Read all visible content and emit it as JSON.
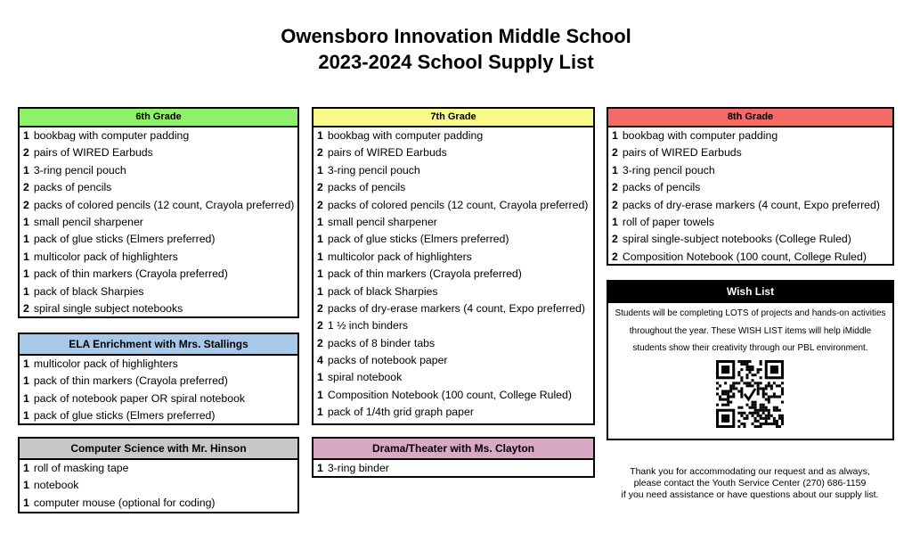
{
  "title_line1": "Owensboro Innovation Middle School",
  "title_line2": "2023-2024 School Supply List",
  "colors": {
    "grade6": "#8ff06a",
    "grade7": "#fafa8a",
    "grade8": "#f46a64",
    "ela": "#a8c8ea",
    "cs": "#c8c8c8",
    "drama": "#d8a8c4",
    "wish": "#000000"
  },
  "grade6": {
    "header": "6th Grade",
    "items": [
      {
        "qty": "1",
        "text": "bookbag with computer padding"
      },
      {
        "qty": "2",
        "text": "pairs of WIRED Earbuds"
      },
      {
        "qty": "1",
        "text": "3-ring pencil pouch"
      },
      {
        "qty": "2",
        "text": "packs of pencils"
      },
      {
        "qty": "2",
        "text": "packs of colored pencils (12 count, Crayola preferred)"
      },
      {
        "qty": "1",
        "text": "small pencil sharpener"
      },
      {
        "qty": "1",
        "text": "pack of glue sticks (Elmers preferred)"
      },
      {
        "qty": "1",
        "text": "multicolor pack of highlighters"
      },
      {
        "qty": "1",
        "text": "pack of thin markers (Crayola preferred)"
      },
      {
        "qty": "1",
        "text": "pack of black Sharpies"
      },
      {
        "qty": "2",
        "text": "spiral single subject notebooks"
      }
    ]
  },
  "ela": {
    "header": "ELA Enrichment with Mrs. Stallings",
    "items": [
      {
        "qty": "1",
        "text": "multicolor pack of highlighters"
      },
      {
        "qty": "1",
        "text": "pack of thin markers (Crayola preferred)"
      },
      {
        "qty": "1",
        "text": "pack of notebook paper OR spiral notebook"
      },
      {
        "qty": "1",
        "text": "pack of glue sticks (Elmers preferred)"
      }
    ]
  },
  "cs": {
    "header": "Computer Science with Mr. Hinson",
    "items": [
      {
        "qty": "1",
        "text": "roll of masking tape"
      },
      {
        "qty": "1",
        "text": "notebook"
      },
      {
        "qty": "1",
        "text": "computer mouse (optional for coding)"
      }
    ]
  },
  "grade7": {
    "header": "7th Grade",
    "items": [
      {
        "qty": "1",
        "text": "bookbag with computer padding"
      },
      {
        "qty": "2",
        "text": "pairs of WIRED Earbuds"
      },
      {
        "qty": "1",
        "text": "3-ring pencil pouch"
      },
      {
        "qty": "2",
        "text": "packs of pencils"
      },
      {
        "qty": "2",
        "text": "packs of colored pencils (12 count, Crayola preferred)"
      },
      {
        "qty": "1",
        "text": "small pencil sharpener"
      },
      {
        "qty": "1",
        "text": "pack of glue sticks (Elmers preferred)"
      },
      {
        "qty": "1",
        "text": "multicolor pack of highlighters"
      },
      {
        "qty": "1",
        "text": "pack of thin markers (Crayola preferred)"
      },
      {
        "qty": "1",
        "text": "pack of black Sharpies"
      },
      {
        "qty": "2",
        "text": "packs of dry-erase markers (4 count, Expo preferred)"
      },
      {
        "qty": "2",
        "text": "1 ½ inch binders"
      },
      {
        "qty": "2",
        "text": "packs of 8 binder tabs"
      },
      {
        "qty": "4",
        "text": "packs of notebook paper"
      },
      {
        "qty": "1",
        "text": "spiral notebook"
      },
      {
        "qty": "1",
        "text": "Composition Notebook (100 count, College Ruled)"
      },
      {
        "qty": "1",
        "text": "pack of 1/4th grid graph paper"
      }
    ]
  },
  "drama": {
    "header": "Drama/Theater with Ms. Clayton",
    "items": [
      {
        "qty": "1",
        "text": "3-ring binder"
      }
    ]
  },
  "grade8": {
    "header": "8th Grade",
    "items": [
      {
        "qty": "1",
        "text": "bookbag with computer padding"
      },
      {
        "qty": "2",
        "text": "pairs of WIRED Earbuds"
      },
      {
        "qty": "1",
        "text": "3-ring pencil pouch"
      },
      {
        "qty": "2",
        "text": "packs of pencils"
      },
      {
        "qty": "2",
        "text": "packs of dry-erase markers (4 count, Expo preferred)"
      },
      {
        "qty": "1",
        "text": "roll of paper towels"
      },
      {
        "qty": "2",
        "text": "spiral single-subject notebooks (College Ruled)"
      },
      {
        "qty": "2",
        "text": "Composition Notebook (100 count, College Ruled)"
      }
    ]
  },
  "wish": {
    "header": "Wish List",
    "text": "Students will be completing LOTS of projects and hands-on activities throughout the year. These WISH LIST items will help iMiddle students show their creativity through our PBL environment.",
    "qr_icon": "qr-code-icon"
  },
  "footer": {
    "line1": "Thank you for accommodating our request and as always,",
    "line2": "please contact the Youth Service Center (270) 686-1159",
    "line3": "if you need assistance or have questions about our supply list."
  }
}
